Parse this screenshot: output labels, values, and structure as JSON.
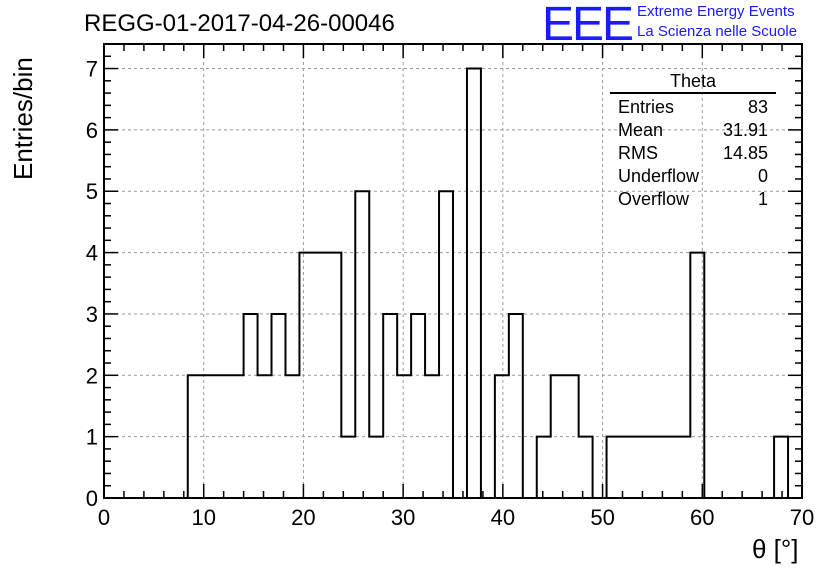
{
  "header": {
    "title": "REGG-01-2017-04-26-00046",
    "logo_text": "EEE",
    "logo_line1": "Extreme Energy Events",
    "logo_line2": "La Scienza nelle Scuole",
    "logo_color": "#1a1aff"
  },
  "stats_box": {
    "title": "Theta",
    "rows": [
      {
        "label": "Entries",
        "value": "83"
      },
      {
        "label": "Mean",
        "value": "31.91"
      },
      {
        "label": "RMS",
        "value": "14.85"
      },
      {
        "label": "Underflow",
        "value": "0"
      },
      {
        "label": "Overflow",
        "value": "1"
      }
    ]
  },
  "chart_data": {
    "type": "bar",
    "histogram": true,
    "xlabel": "θ [°]",
    "ylabel": "Entries/bin",
    "xlim": [
      0,
      70
    ],
    "ylim": [
      0,
      7.4
    ],
    "bin_width": 1.4,
    "grid": true,
    "x_ticks": [
      0,
      10,
      20,
      30,
      40,
      50,
      60,
      70
    ],
    "y_ticks": [
      0,
      1,
      2,
      3,
      4,
      5,
      6,
      7
    ],
    "bin_edges_start": 8.4,
    "values": [
      2,
      2,
      2,
      2,
      3,
      2,
      3,
      2,
      4,
      4,
      4,
      1,
      5,
      1,
      3,
      2,
      3,
      2,
      5,
      0,
      7,
      0,
      2,
      3,
      0,
      1,
      2,
      2,
      1,
      0,
      1,
      1,
      1,
      1,
      1,
      1,
      4,
      0,
      0,
      0,
      0,
      0,
      1
    ],
    "line_color": "#000000"
  }
}
